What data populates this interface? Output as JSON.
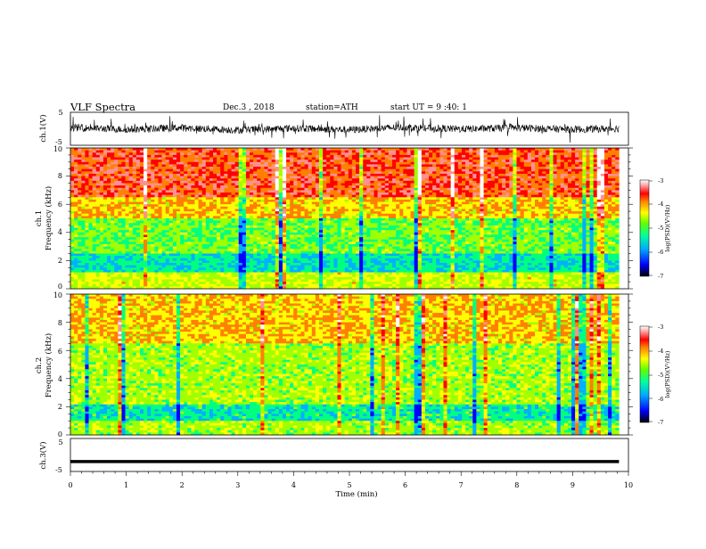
{
  "header": {
    "title": "VLF  Spectra",
    "date": "Dec.3  , 2018",
    "station": "station=ATH",
    "start_ut": "start  UT  =   9  :40: 1"
  },
  "chart_data": [
    {
      "type": "line",
      "name": "ch1-waveform",
      "ylabel": "ch.1(V)",
      "ylim": [
        -5,
        5
      ],
      "yticks": [
        "5",
        "-5"
      ],
      "xlim": [
        0,
        10
      ],
      "approx_values": {
        "x": [
          0,
          1,
          2,
          3,
          4,
          5,
          6,
          7,
          8,
          9,
          9.83
        ],
        "y": [
          0.4,
          -0.2,
          0.3,
          -0.4,
          0.2,
          -0.3,
          0.5,
          -0.1,
          0.3,
          -0.2,
          0.1
        ]
      },
      "grid": false
    },
    {
      "type": "heatmap",
      "name": "ch1-spectrogram",
      "ylabel": "ch.1\nFrequency  (kHz)",
      "ylim": [
        0,
        10
      ],
      "yticks": [
        "0",
        "2",
        "4",
        "6",
        "8",
        "10"
      ],
      "xlim": [
        0,
        10
      ],
      "data_extent_min": 9.83,
      "colorbar": {
        "label": "log(PSD)(V²/Hz)",
        "range": [
          -7,
          -3
        ],
        "ticks": [
          "-3",
          "-4",
          "-5",
          "-6",
          "-7"
        ]
      },
      "approx_band_log_psd": [
        {
          "freq_khz": [
            6.5,
            10
          ],
          "log_psd": -3.8
        },
        {
          "freq_khz": [
            5,
            6.5
          ],
          "log_psd": -4.4
        },
        {
          "freq_khz": [
            2.5,
            5
          ],
          "log_psd": -5.2
        },
        {
          "freq_khz": [
            1.2,
            2.5
          ],
          "log_psd": -5.8
        },
        {
          "freq_khz": [
            0.3,
            1.2
          ],
          "log_psd": -4.8
        }
      ]
    },
    {
      "type": "heatmap",
      "name": "ch2-spectrogram",
      "ylabel": "ch.2\nFrequency  (kHz)",
      "ylim": [
        0,
        10
      ],
      "yticks": [
        "0",
        "2",
        "4",
        "6",
        "8",
        "10"
      ],
      "xlim": [
        0,
        10
      ],
      "data_extent_min": 9.83,
      "colorbar": {
        "label": "log(PSD)(V²/Hz)",
        "range": [
          -7,
          -3
        ],
        "ticks": [
          "-3",
          "-4",
          "-5",
          "-6",
          "-7"
        ]
      },
      "approx_band_log_psd": [
        {
          "freq_khz": [
            6.5,
            10
          ],
          "log_psd": -4.4
        },
        {
          "freq_khz": [
            2.2,
            6.5
          ],
          "log_psd": -5.0
        },
        {
          "freq_khz": [
            1.0,
            2.2
          ],
          "log_psd": -5.7
        },
        {
          "freq_khz": [
            0,
            1.0
          ],
          "log_psd": -5.0
        }
      ]
    },
    {
      "type": "line",
      "name": "ch3-signal",
      "ylabel": "ch.3(V)",
      "ylim": [
        -5,
        5
      ],
      "yticks": [
        "5",
        "-5"
      ],
      "xlim": [
        0,
        10
      ],
      "approx_values": {
        "x": [
          0,
          9.83
        ],
        "y": [
          -2,
          -2
        ]
      },
      "grid": false
    }
  ],
  "xaxis": {
    "label": "Time  (min)",
    "ticks": [
      "0",
      "1",
      "2",
      "3",
      "4",
      "5",
      "6",
      "7",
      "8",
      "9",
      "10"
    ]
  },
  "colors": {
    "colormap": [
      "#000000",
      "#0000ff",
      "#00b0ff",
      "#00ff80",
      "#a0ff00",
      "#ffff00",
      "#ff8000",
      "#ff0000",
      "#ff9090",
      "#ffffff"
    ]
  }
}
